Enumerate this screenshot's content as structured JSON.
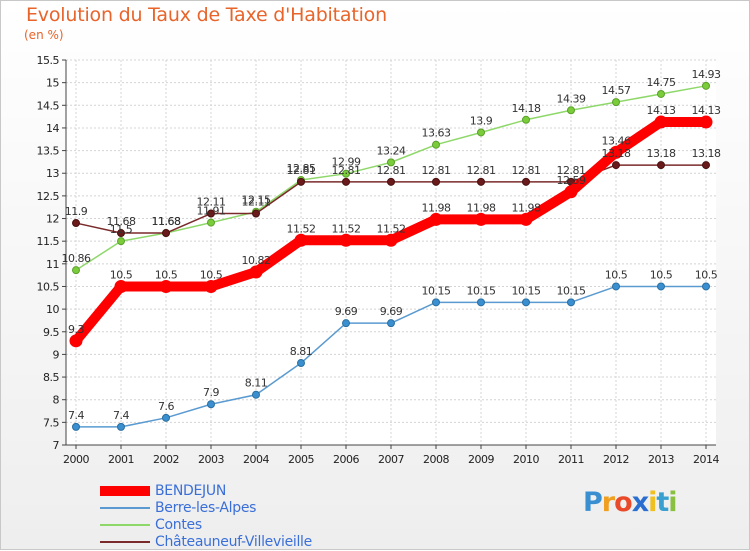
{
  "chart_data": {
    "type": "line",
    "title": "Evolution du Taux de Taxe d'Habitation",
    "unit_label": "(en %)",
    "xlabel": "",
    "ylabel": "",
    "x": [
      "2000",
      "2001",
      "2002",
      "2003",
      "2004",
      "2005",
      "2006",
      "2007",
      "2008",
      "2009",
      "2010",
      "2011",
      "2012",
      "2013",
      "2014"
    ],
    "ylim": [
      7,
      15.5
    ],
    "yticks": [
      "7",
      "7.5",
      "8",
      "8.5",
      "9",
      "9.5",
      "10",
      "10.5",
      "11",
      "11.5",
      "12",
      "12.5",
      "13",
      "13.5",
      "14",
      "14.5",
      "15",
      "15.5"
    ],
    "grid": true,
    "legend_position": "bottom-left",
    "series": [
      {
        "name": "BENDEJUN",
        "color": "#ff0000",
        "values": [
          9.3,
          10.5,
          10.5,
          10.5,
          10.82,
          11.52,
          11.52,
          11.52,
          11.98,
          11.98,
          11.98,
          12.59,
          13.46,
          14.13,
          14.13
        ],
        "labels": [
          "9.3",
          "10.5",
          "10.5",
          "10.5",
          "10.82",
          "11.52",
          "11.52",
          "11.52",
          "11.98",
          "11.98",
          "11.98",
          "12.59",
          "13.46",
          "14.13",
          "14.13"
        ]
      },
      {
        "name": "Berre-les-Alpes",
        "color": "#5a9ad0",
        "values": [
          7.4,
          7.4,
          7.6,
          7.9,
          8.11,
          8.81,
          9.69,
          9.69,
          10.15,
          10.15,
          10.15,
          10.15,
          10.5,
          10.5,
          10.5
        ],
        "labels": [
          "7.4",
          "7.4",
          "7.6",
          "7.9",
          "8.11",
          "8.81",
          "9.69",
          "9.69",
          "10.15",
          "10.15",
          "10.15",
          "10.15",
          "10.5",
          "10.5",
          "10.5"
        ]
      },
      {
        "name": "Contes",
        "color": "#8ed86a",
        "values": [
          10.86,
          11.5,
          11.68,
          11.91,
          12.15,
          12.85,
          12.99,
          13.24,
          13.63,
          13.9,
          14.18,
          14.39,
          14.57,
          14.75,
          14.93
        ],
        "labels": [
          "10.86",
          "11.5",
          "11.68",
          "11.91",
          "12.15",
          "12.85",
          "12.99",
          "13.24",
          "13.63",
          "13.9",
          "14.18",
          "14.39",
          "14.57",
          "14.75",
          "14.93"
        ]
      },
      {
        "name": "Châteauneuf-Villevieille",
        "color": "#7a2a2a",
        "values": [
          11.9,
          11.68,
          11.68,
          12.11,
          12.11,
          12.81,
          12.81,
          12.81,
          12.81,
          12.81,
          12.81,
          12.81,
          13.18,
          13.18,
          13.18
        ],
        "labels": [
          "11.9",
          "11.68",
          "11.68",
          "12.11",
          "12.11",
          "12.81",
          "12.81",
          "12.81",
          "12.81",
          "12.81",
          "12.81",
          "12.81",
          "13.18",
          "13.18",
          "13.18"
        ]
      }
    ]
  },
  "logo": {
    "letters": [
      "P",
      "r",
      "o",
      "x",
      "i",
      "t",
      "i"
    ],
    "colors": [
      "#3a8fd0",
      "#f0a020",
      "#e84a2a",
      "#2a6fd0",
      "#f0c020",
      "#3aa0d0",
      "#8ac040"
    ]
  }
}
